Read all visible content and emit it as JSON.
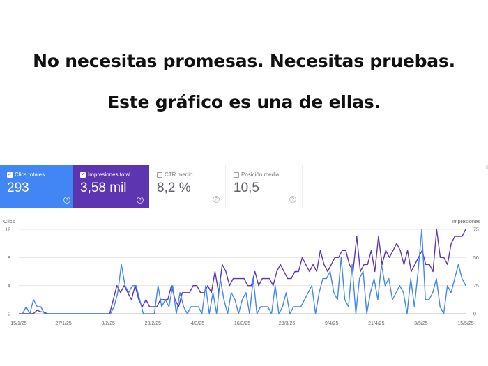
{
  "headline": {
    "line1": "No necesitas promesas. Necesitas pruebas.",
    "line2": "Este gráfico es una de ellas."
  },
  "metrics": [
    {
      "label": "Clics totales",
      "value": "293",
      "checked": true,
      "color": "#4285f4"
    },
    {
      "label": "Impresiones total...",
      "value": "3,58 mil",
      "checked": true,
      "color": "#5e35b1"
    },
    {
      "label": "CTR medio",
      "value": "8,2 %",
      "checked": false,
      "color": "#ffffff"
    },
    {
      "label": "Posición media",
      "value": "10,5",
      "checked": false,
      "color": "#ffffff"
    }
  ],
  "chart_data": {
    "type": "line",
    "left_axis_title": "Clics",
    "right_axis_title": "Impresiones",
    "left_ticks": [
      "12",
      "8",
      "4",
      "0"
    ],
    "right_ticks": [
      "75",
      "50",
      "25",
      "0"
    ],
    "ylim_left": [
      0,
      12
    ],
    "ylim_right": [
      0,
      75
    ],
    "x_tick_labels": [
      "15/1/25",
      "27/1/25",
      "8/2/25",
      "20/2/25",
      "4/3/25",
      "16/3/25",
      "28/3/25",
      "9/4/25",
      "21/4/25",
      "3/5/25",
      "15/5/25"
    ],
    "grid": true,
    "series": [
      {
        "name": "Clics totales",
        "axis": "left",
        "color": "#4285f4",
        "values": [
          0,
          0,
          1,
          0,
          2,
          1,
          1,
          0,
          0,
          0,
          0,
          0,
          0,
          0,
          0,
          0,
          0,
          0,
          0,
          0,
          0,
          0,
          0,
          0,
          0,
          0,
          1,
          3,
          7,
          4,
          3,
          4,
          4,
          2,
          0,
          0,
          0,
          0,
          4,
          1,
          2,
          1,
          4,
          0,
          3,
          1,
          0,
          1,
          1,
          1,
          0,
          4,
          0,
          3,
          0,
          5,
          2,
          0,
          3,
          2,
          0,
          2,
          3,
          0,
          5,
          0,
          1,
          1,
          1,
          0,
          4,
          0,
          1,
          3,
          0,
          1,
          1,
          1,
          2,
          3,
          4,
          0,
          3,
          5,
          5,
          6,
          3,
          2,
          8,
          2,
          1,
          7,
          0,
          5,
          6,
          0,
          3,
          5,
          2,
          7,
          4,
          5,
          2,
          3,
          4,
          3,
          0,
          5,
          1,
          6,
          12,
          2,
          2,
          3,
          5,
          1,
          0,
          4,
          3,
          5,
          7,
          5,
          4
        ]
      },
      {
        "name": "Impresiones total...",
        "axis": "left",
        "color": "#5e35b1",
        "values": [
          0,
          0,
          0,
          0,
          0,
          0.5,
          0.3,
          0.2,
          0,
          0,
          0,
          0,
          0,
          0,
          0,
          0,
          0,
          0,
          0,
          0,
          0,
          0,
          0,
          0,
          0,
          0,
          2,
          4,
          3,
          4,
          3,
          2,
          4,
          2,
          1,
          2,
          1,
          1,
          1,
          2,
          2,
          2,
          4,
          2,
          1,
          3,
          3,
          3,
          4,
          4,
          3,
          3,
          4,
          3,
          6,
          3,
          7,
          6,
          4,
          5,
          5,
          5,
          5,
          4,
          4,
          6,
          4,
          5,
          5,
          5,
          4,
          6,
          7,
          6,
          5,
          5,
          6,
          6,
          8,
          7,
          6,
          7,
          6,
          9,
          7,
          6,
          7,
          8,
          8,
          9,
          9,
          7,
          6,
          11,
          6,
          7,
          7,
          9,
          6,
          11,
          7,
          9,
          8,
          9,
          10,
          9,
          7,
          9,
          6,
          7,
          8,
          9,
          7,
          7,
          6,
          12,
          8,
          8,
          7,
          10,
          11,
          11,
          11,
          12
        ]
      }
    ]
  }
}
